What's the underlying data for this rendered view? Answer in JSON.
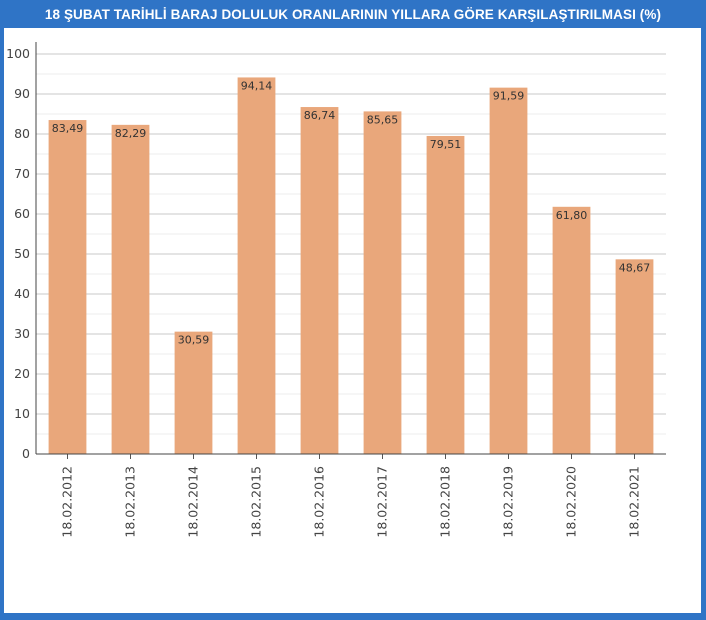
{
  "chart_data": {
    "type": "bar",
    "title": "18 ŞUBAT TARİHLİ BARAJ DOLULUK ORANLARININ YILLARA GÖRE KARŞILAŞTIRILMASI (%)",
    "categories": [
      "18.02.2012",
      "18.02.2013",
      "18.02.2014",
      "18.02.2015",
      "18.02.2016",
      "18.02.2017",
      "18.02.2018",
      "18.02.2019",
      "18.02.2020",
      "18.02.2021"
    ],
    "values": [
      83.49,
      82.29,
      30.59,
      94.14,
      86.74,
      85.65,
      79.51,
      91.59,
      61.8,
      48.67
    ],
    "data_labels": [
      "83,49",
      "82,29",
      "30,59",
      "94,14",
      "86,74",
      "85,65",
      "79,51",
      "91,59",
      "61,80",
      "48,67"
    ],
    "y_ticks": [
      "0",
      "10",
      "20",
      "30",
      "40",
      "50",
      "60",
      "70",
      "80",
      "90",
      "100"
    ],
    "ylim": [
      0,
      100
    ],
    "xlabel": "",
    "ylabel": "",
    "grid": true,
    "legend": "none",
    "bar_color": "#e9a77b",
    "background_color": "#2f74c6"
  }
}
